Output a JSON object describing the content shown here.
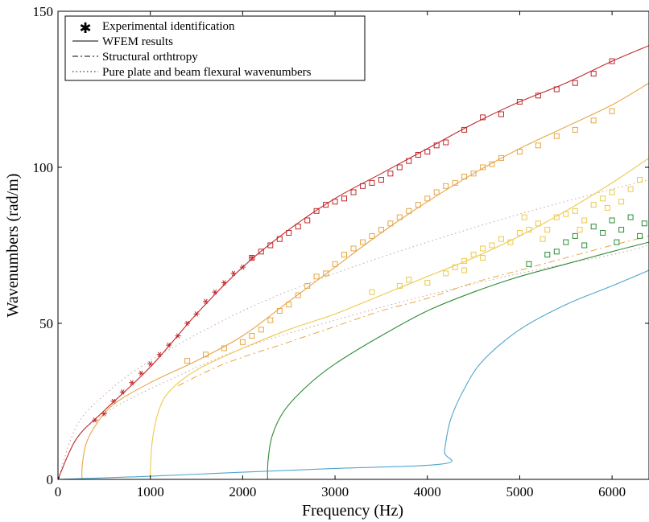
{
  "chart_data": {
    "type": "line",
    "xlabel": "Frequency (Hz)",
    "ylabel": "Wavenumbers (rad/m)",
    "xlim": [
      0,
      6400
    ],
    "ylim": [
      0,
      150
    ],
    "xticks": [
      0,
      1000,
      2000,
      3000,
      4000,
      5000,
      6000
    ],
    "yticks": [
      0,
      50,
      100,
      150
    ],
    "grid": false,
    "legend_position": "top-left",
    "legend": [
      {
        "label": "Experimental identification",
        "style": "asterisk"
      },
      {
        "label": "WFEM results",
        "style": "solid"
      },
      {
        "label": "Structural orthtropy",
        "style": "dashdot"
      },
      {
        "label": "Pure plate and beam flexural wavenumbers",
        "style": "dotted"
      }
    ],
    "colors": {
      "red": "#c0282b",
      "orange": "#e6a645",
      "yellow": "#ecc94a",
      "green": "#2c8c35",
      "blue": "#4fa6cc",
      "gray": "#c8a0a0"
    },
    "wfem_series": [
      {
        "color_key": "red",
        "points": [
          [
            0,
            0
          ],
          [
            200,
            13
          ],
          [
            500,
            22
          ],
          [
            1000,
            36
          ],
          [
            1500,
            53
          ],
          [
            2000,
            68
          ],
          [
            2500,
            80
          ],
          [
            3000,
            90
          ],
          [
            3500,
            98
          ],
          [
            4000,
            106
          ],
          [
            4500,
            114
          ],
          [
            5000,
            121
          ],
          [
            5500,
            127
          ],
          [
            6000,
            134
          ],
          [
            6400,
            139
          ]
        ]
      },
      {
        "color_key": "orange",
        "points": [
          [
            260,
            0
          ],
          [
            262,
            4
          ],
          [
            300,
            11
          ],
          [
            400,
            17
          ],
          [
            600,
            24
          ],
          [
            1000,
            31
          ],
          [
            1500,
            38
          ],
          [
            2000,
            46
          ],
          [
            2500,
            57
          ],
          [
            3000,
            68
          ],
          [
            3500,
            79
          ],
          [
            4000,
            89
          ],
          [
            4500,
            98
          ],
          [
            5000,
            106
          ],
          [
            5500,
            113
          ],
          [
            6000,
            120
          ],
          [
            6400,
            127
          ]
        ]
      },
      {
        "color_key": "yellow",
        "points": [
          [
            1000,
            1
          ],
          [
            1002,
            4
          ],
          [
            1020,
            12
          ],
          [
            1080,
            21
          ],
          [
            1200,
            28
          ],
          [
            1500,
            35
          ],
          [
            2000,
            42
          ],
          [
            2500,
            48
          ],
          [
            3000,
            53
          ],
          [
            3500,
            59
          ],
          [
            4000,
            65
          ],
          [
            4500,
            71
          ],
          [
            5000,
            78
          ],
          [
            5500,
            86
          ],
          [
            6000,
            95
          ],
          [
            6400,
            103
          ]
        ]
      },
      {
        "color_key": "green",
        "points": [
          [
            2270,
            0
          ],
          [
            2275,
            6
          ],
          [
            2320,
            14
          ],
          [
            2450,
            22
          ],
          [
            2700,
            30
          ],
          [
            3000,
            37
          ],
          [
            3500,
            46
          ],
          [
            4000,
            54
          ],
          [
            4500,
            60
          ],
          [
            5000,
            65
          ],
          [
            5500,
            69
          ],
          [
            6000,
            73
          ],
          [
            6400,
            76
          ]
        ]
      },
      {
        "color_key": "blue",
        "points": [
          [
            0,
            0
          ],
          [
            500,
            0.5
          ],
          [
            1000,
            1
          ],
          [
            2000,
            2.3
          ],
          [
            3000,
            3.5
          ],
          [
            4180,
            5
          ],
          [
            4185,
            9
          ],
          [
            4250,
            19
          ],
          [
            4400,
            29
          ],
          [
            4600,
            38
          ],
          [
            5000,
            48
          ],
          [
            5500,
            56
          ],
          [
            6000,
            62
          ],
          [
            6400,
            67
          ]
        ]
      }
    ],
    "orthotropy_series": [
      {
        "color_key": "orange",
        "points": [
          [
            1300,
            30
          ],
          [
            1800,
            37
          ],
          [
            2500,
            44
          ],
          [
            3000,
            49
          ],
          [
            3500,
            54
          ],
          [
            4000,
            58
          ],
          [
            4500,
            63
          ],
          [
            5000,
            67
          ],
          [
            5500,
            71
          ],
          [
            6000,
            75
          ],
          [
            6400,
            78
          ]
        ]
      }
    ],
    "flexural_series": [
      {
        "color_key": "gray",
        "points": [
          [
            0,
            0
          ],
          [
            200,
            17
          ],
          [
            500,
            27
          ],
          [
            1000,
            38
          ],
          [
            2000,
            54
          ],
          [
            3000,
            66
          ],
          [
            4000,
            76
          ],
          [
            5000,
            85
          ],
          [
            6000,
            93
          ],
          [
            6400,
            96
          ]
        ]
      },
      {
        "color_key": "gray",
        "points": [
          [
            0,
            0
          ],
          [
            200,
            13
          ],
          [
            500,
            21
          ],
          [
            1000,
            29
          ],
          [
            2000,
            42
          ],
          [
            3000,
            51
          ],
          [
            4000,
            59
          ],
          [
            5000,
            66
          ],
          [
            6000,
            72
          ],
          [
            6400,
            75
          ]
        ]
      }
    ],
    "experimental_points": {
      "marker": "asterisk",
      "color_key": "red",
      "points": [
        [
          0,
          0
        ],
        [
          400,
          19
        ],
        [
          500,
          21
        ],
        [
          600,
          25
        ],
        [
          700,
          28
        ],
        [
          800,
          31
        ],
        [
          900,
          34
        ],
        [
          1000,
          37
        ],
        [
          1100,
          40
        ],
        [
          1200,
          43
        ],
        [
          1300,
          46
        ],
        [
          1400,
          50
        ],
        [
          1500,
          53
        ],
        [
          1600,
          57
        ],
        [
          1700,
          60
        ],
        [
          1800,
          63
        ],
        [
          1900,
          66
        ],
        [
          2000,
          68
        ],
        [
          2100,
          71
        ]
      ]
    },
    "scatter_series": [
      {
        "color_key": "red",
        "marker": "square",
        "points": [
          [
            2100,
            71
          ],
          [
            2200,
            73
          ],
          [
            2300,
            75
          ],
          [
            2400,
            77
          ],
          [
            2500,
            79
          ],
          [
            2600,
            81
          ],
          [
            2700,
            83
          ],
          [
            2800,
            86
          ],
          [
            2900,
            88
          ],
          [
            3000,
            89
          ],
          [
            3100,
            90
          ],
          [
            3200,
            92
          ],
          [
            3300,
            94
          ],
          [
            3400,
            95
          ],
          [
            3500,
            96
          ],
          [
            3600,
            98
          ],
          [
            3700,
            100
          ],
          [
            3800,
            102
          ],
          [
            3900,
            104
          ],
          [
            4000,
            105
          ],
          [
            4100,
            107
          ],
          [
            4200,
            108
          ],
          [
            4400,
            112
          ],
          [
            4600,
            116
          ],
          [
            4800,
            117
          ],
          [
            5000,
            121
          ],
          [
            5200,
            123
          ],
          [
            5400,
            125
          ],
          [
            5600,
            127
          ],
          [
            5800,
            130
          ],
          [
            6000,
            134
          ]
        ]
      },
      {
        "color_key": "orange",
        "marker": "square",
        "points": [
          [
            1400,
            38
          ],
          [
            1600,
            40
          ],
          [
            1800,
            42
          ],
          [
            2000,
            44
          ],
          [
            2100,
            46
          ],
          [
            2200,
            48
          ],
          [
            2300,
            51
          ],
          [
            2400,
            54
          ],
          [
            2500,
            56
          ],
          [
            2600,
            59
          ],
          [
            2700,
            62
          ],
          [
            2800,
            65
          ],
          [
            2900,
            66
          ],
          [
            3000,
            69
          ],
          [
            3100,
            72
          ],
          [
            3200,
            74
          ],
          [
            3300,
            76
          ],
          [
            3400,
            78
          ],
          [
            3500,
            80
          ],
          [
            3600,
            82
          ],
          [
            3700,
            84
          ],
          [
            3800,
            86
          ],
          [
            3900,
            88
          ],
          [
            4000,
            90
          ],
          [
            4100,
            92
          ],
          [
            4200,
            94
          ],
          [
            4300,
            95
          ],
          [
            4400,
            97
          ],
          [
            4500,
            98
          ],
          [
            4600,
            100
          ],
          [
            4700,
            101
          ],
          [
            4800,
            103
          ],
          [
            5000,
            105
          ],
          [
            5200,
            107
          ],
          [
            5400,
            110
          ],
          [
            5600,
            112
          ],
          [
            5800,
            115
          ],
          [
            6000,
            118
          ]
        ]
      },
      {
        "color_key": "yellow",
        "marker": "square",
        "points": [
          [
            3400,
            60
          ],
          [
            3700,
            62
          ],
          [
            3800,
            64
          ],
          [
            4000,
            63
          ],
          [
            4200,
            66
          ],
          [
            4300,
            68
          ],
          [
            4400,
            70
          ],
          [
            4500,
            72
          ],
          [
            4600,
            74
          ],
          [
            4700,
            75
          ],
          [
            4800,
            77
          ],
          [
            4900,
            76
          ],
          [
            5000,
            79
          ],
          [
            5100,
            80
          ],
          [
            5200,
            82
          ],
          [
            5300,
            80
          ],
          [
            5400,
            84
          ],
          [
            5500,
            85
          ],
          [
            5600,
            86
          ],
          [
            5700,
            83
          ],
          [
            5800,
            88
          ],
          [
            5900,
            90
          ],
          [
            6000,
            92
          ],
          [
            6100,
            89
          ],
          [
            6200,
            93
          ],
          [
            6300,
            96
          ],
          [
            4400,
            67
          ],
          [
            4600,
            71
          ],
          [
            5050,
            84
          ],
          [
            5250,
            77
          ],
          [
            5650,
            80
          ],
          [
            5950,
            87
          ]
        ]
      },
      {
        "color_key": "green",
        "marker": "square",
        "points": [
          [
            5100,
            69
          ],
          [
            5300,
            72
          ],
          [
            5500,
            76
          ],
          [
            5600,
            78
          ],
          [
            5700,
            75
          ],
          [
            5800,
            81
          ],
          [
            5900,
            79
          ],
          [
            6000,
            83
          ],
          [
            6100,
            80
          ],
          [
            6200,
            84
          ],
          [
            6300,
            78
          ],
          [
            6350,
            82
          ],
          [
            5400,
            73
          ],
          [
            6050,
            76
          ]
        ]
      }
    ]
  }
}
